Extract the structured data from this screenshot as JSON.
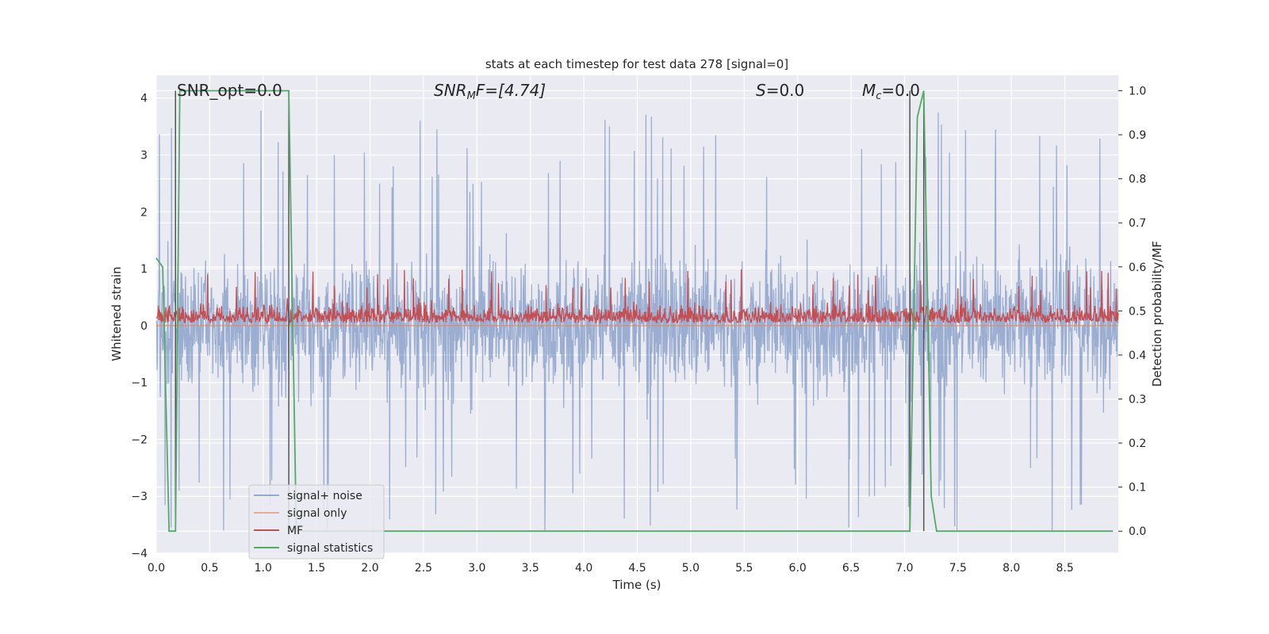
{
  "chart_data": {
    "type": "line",
    "title": "stats at each timestep for test data 278 [signal=0]",
    "xlabel": "Time (s)",
    "ylabel": "Whitened strain",
    "y2label": "Detection probability/MF",
    "xlim": [
      0.0,
      9.0
    ],
    "ylim": [
      -4,
      4.4
    ],
    "y2lim": [
      -0.05,
      1.035
    ],
    "xticks": [
      "0.0",
      "0.5",
      "1.0",
      "1.5",
      "2.0",
      "2.5",
      "3.0",
      "3.5",
      "4.0",
      "4.5",
      "5.0",
      "5.5",
      "6.0",
      "6.5",
      "7.0",
      "7.5",
      "8.0",
      "8.5"
    ],
    "yticks": [
      "4",
      "3",
      "2",
      "1",
      "0",
      "−1",
      "−2",
      "−3",
      "−4"
    ],
    "y2ticks": [
      "1.0",
      "0.9",
      "0.8",
      "0.7",
      "0.6",
      "0.5",
      "0.4",
      "0.3",
      "0.2",
      "0.1",
      "0.0"
    ],
    "grid": true,
    "legend_placement": "lower-left",
    "annotations": {
      "snr_opt": "SNR_opt=0.0",
      "snr_mf_sym": "SNR",
      "snr_mf_sub": "M",
      "snr_mf_rest": "F=[4.74]",
      "s_sym": "S",
      "s_rest": "=0.0",
      "mc_sym": "M",
      "mc_sub": "c",
      "mc_rest": "=0.0"
    },
    "series": [
      {
        "name": "signal+ noise",
        "color": "#4c72b0",
        "axis": "left",
        "noise_envelope": {
          "typical_low": -2.3,
          "typical_high": 2.3,
          "peak_low": -3.6,
          "peak_high": 4.0
        }
      },
      {
        "name": "signal only",
        "color": "#dd8452",
        "axis": "left",
        "x": [
          0.0,
          9.0
        ],
        "y": [
          0.0,
          0.0
        ]
      },
      {
        "name": "MF",
        "color": "#c44e52",
        "axis": "left",
        "noise_envelope": {
          "baseline": 0.05,
          "typical_high": 0.55,
          "peak_high": 1.0
        }
      },
      {
        "name": "signal statistics",
        "color": "#55a868",
        "axis": "right",
        "x": [
          0.0,
          0.06,
          0.12,
          0.18,
          0.22,
          0.25,
          1.24,
          1.31,
          1.38,
          3.3,
          7.05,
          7.12,
          7.18,
          7.25,
          7.3,
          8.95
        ],
        "y": [
          0.62,
          0.6,
          0.0,
          0.0,
          1.0,
          1.0,
          1.0,
          0.0,
          0.0,
          0.0,
          0.0,
          0.94,
          1.0,
          0.08,
          0.0,
          0.0
        ]
      }
    ],
    "vertical_markers": {
      "color": "#555555",
      "x": [
        0.18,
        1.24,
        7.05,
        7.18
      ]
    }
  }
}
